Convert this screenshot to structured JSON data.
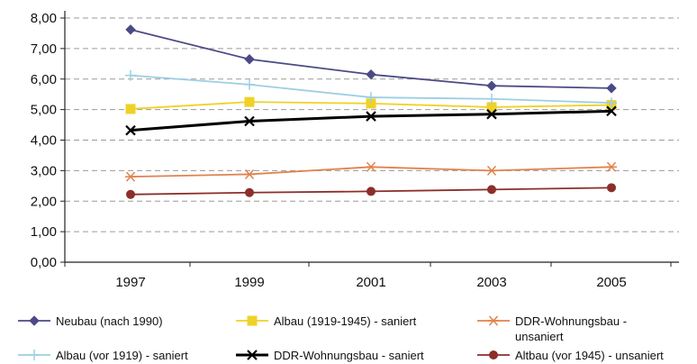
{
  "chart_data": {
    "type": "line",
    "x": [
      1997,
      1999,
      2001,
      2003,
      2005
    ],
    "x_tick_labels": [
      "1997",
      "1999",
      "2001",
      "2003",
      "2005"
    ],
    "ylim": [
      0,
      8
    ],
    "y_tick_labels": [
      "0,00",
      "1,00",
      "2,00",
      "3,00",
      "4,00",
      "5,00",
      "6,00",
      "7,00",
      "8,00"
    ],
    "grid": "horizontal dashed",
    "legend_position": "bottom",
    "series": [
      {
        "name": "Neubau (nach 1990)",
        "values": [
          7.62,
          6.65,
          6.15,
          5.78,
          5.7
        ],
        "color": "#4b4a86",
        "marker": "diamond"
      },
      {
        "name": "Albau (1919-1945) - saniert",
        "values": [
          5.02,
          5.25,
          5.2,
          5.08,
          5.15
        ],
        "color": "#efd227",
        "marker": "square"
      },
      {
        "name": "DDR-Wohnungsbau - unsaniert",
        "values": [
          2.8,
          2.88,
          3.12,
          3.0,
          3.12
        ],
        "color": "#e0824d",
        "marker": "asterisk"
      },
      {
        "name": "Albau (vor 1919) - saniert",
        "values": [
          6.12,
          5.82,
          5.4,
          5.35,
          5.22
        ],
        "color": "#9ccfe4",
        "marker": "plus"
      },
      {
        "name": "DDR-Wohnungsbau - saniert",
        "values": [
          4.32,
          4.62,
          4.78,
          4.85,
          4.95
        ],
        "color": "#000000",
        "marker": "cross"
      },
      {
        "name": "Altbau (vor 1945) - unsaniert",
        "values": [
          2.22,
          2.28,
          2.32,
          2.38,
          2.44
        ],
        "color": "#8b2f2a",
        "marker": "circle"
      }
    ]
  }
}
